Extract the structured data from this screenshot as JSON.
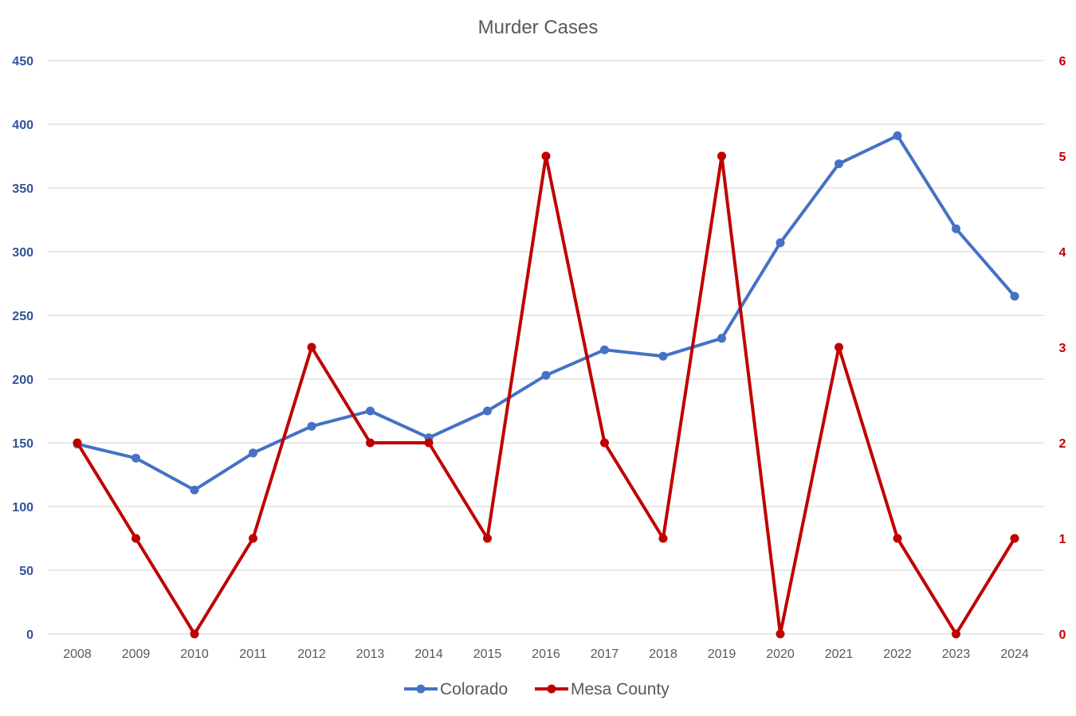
{
  "chart_data": {
    "type": "line",
    "title": "Murder Cases",
    "x": [
      "2008",
      "2009",
      "2010",
      "2011",
      "2012",
      "2013",
      "2014",
      "2015",
      "2016",
      "2017",
      "2018",
      "2019",
      "2020",
      "2021",
      "2022",
      "2023",
      "2024"
    ],
    "series": [
      {
        "name": "Colorado",
        "axis": "left",
        "color": "#4472C4",
        "values": [
          149,
          138,
          113,
          142,
          163,
          175,
          154,
          175,
          203,
          223,
          218,
          232,
          307,
          369,
          391,
          318,
          265
        ]
      },
      {
        "name": "Mesa County",
        "axis": "right",
        "color": "#C00000",
        "values": [
          2,
          1,
          0,
          1,
          3,
          2,
          2,
          1,
          5,
          2,
          1,
          5,
          0,
          3,
          1,
          0,
          1
        ]
      }
    ],
    "y_left": {
      "range": [
        0,
        450
      ],
      "ticks": [
        "0",
        "50",
        "100",
        "150",
        "200",
        "250",
        "300",
        "350",
        "400",
        "450"
      ],
      "color": "#2F5597"
    },
    "y_right": {
      "range": [
        0,
        6
      ],
      "ticks": [
        "0",
        "1",
        "2",
        "3",
        "4",
        "5",
        "6"
      ],
      "color": "#C00000"
    },
    "grid": true,
    "legend": "bottom"
  }
}
